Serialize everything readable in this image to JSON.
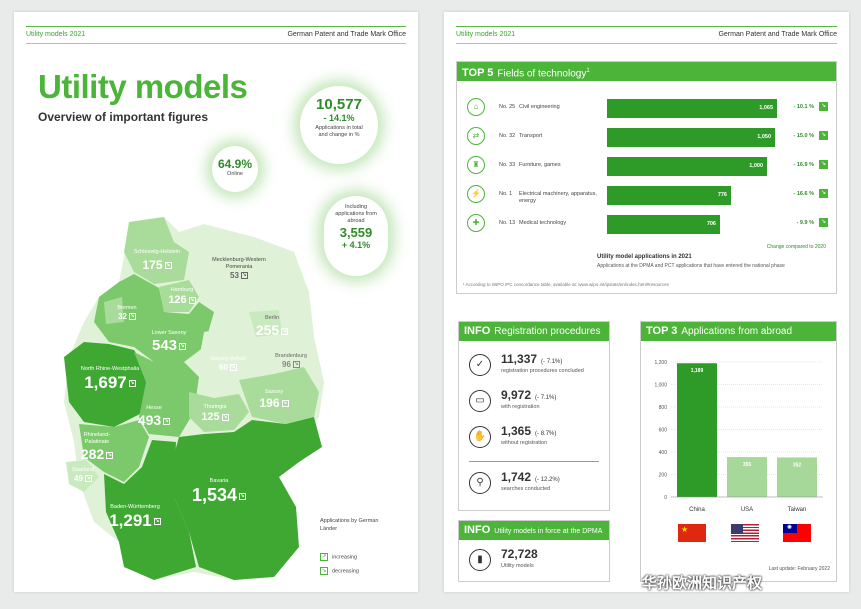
{
  "left": {
    "header_left": "Utility models 2021",
    "header_right": "German Patent and Trade Mark Office",
    "title": "Utility models",
    "subtitle": "Overview of important figures",
    "total": {
      "value": "10,577",
      "change": "- 14.1%",
      "label": "Applications in total and change in %"
    },
    "online": {
      "value": "64.9%",
      "label": "Online"
    },
    "abroad": {
      "label": "Including applications from abroad",
      "value": "3,559",
      "change": "+ 4.1%"
    },
    "regions": [
      {
        "name": "Schleswig-Holstein",
        "value": "175"
      },
      {
        "name": "Mecklenburg-Western Pomerania",
        "value": "53"
      },
      {
        "name": "Hamburg",
        "value": "126"
      },
      {
        "name": "Bremen",
        "value": "32"
      },
      {
        "name": "Lower Saxony",
        "value": "543"
      },
      {
        "name": "Berlin",
        "value": "255"
      },
      {
        "name": "Brandenburg",
        "value": "96"
      },
      {
        "name": "Saxony-Anhalt",
        "value": "60"
      },
      {
        "name": "North Rhine-Westphalia",
        "value": "1,697"
      },
      {
        "name": "Hesse",
        "value": "493"
      },
      {
        "name": "Thuringia",
        "value": "125"
      },
      {
        "name": "Saxony",
        "value": "196"
      },
      {
        "name": "Rhineland-Palatinate",
        "value": "282"
      },
      {
        "name": "Saarland",
        "value": "49"
      },
      {
        "name": "Bavaria",
        "value": "1,534"
      },
      {
        "name": "Baden-Württemberg",
        "value": "1,291"
      }
    ],
    "legend_title": "Applications by German Länder",
    "legend_increasing": "increasing",
    "legend_decreasing": "decreasing"
  },
  "right": {
    "header_left": "Utility models 2021",
    "header_right": "German Patent and Trade Mark Office",
    "top5": {
      "title_bold": "TOP 5",
      "title": "Fields of technology",
      "rows": [
        {
          "no": "No. 25",
          "name": "Civil engineering",
          "value": "1,065",
          "change": "- 10.1 %"
        },
        {
          "no": "No. 32",
          "name": "Transport",
          "value": "1,050",
          "change": "- 15.0 %"
        },
        {
          "no": "No. 33",
          "name": "Furniture, games",
          "value": "1,000",
          "change": "- 16.9 %"
        },
        {
          "no": "No. 1",
          "name": "Electrical machinery, apparatus, energy",
          "value": "776",
          "change": "- 16.6 %"
        },
        {
          "no": "No. 13",
          "name": "Medical technology",
          "value": "706",
          "change": "- 9.9 %"
        }
      ],
      "change_note": "Change compared to 2020",
      "caption": "Utility model applications in 2021",
      "caption2": "Applications at the DPMA and PCT applications that have entered the national phase",
      "footnote": "¹ According to WIPO IPC concordance table, available at: www.wipo.int/ipstats/en/index.html#resources"
    },
    "info_reg": {
      "title_bold": "INFO",
      "title": "Registration procedures",
      "rows": [
        {
          "value": "11,337",
          "change": "(- 7.1%)",
          "label": "registration procedures concluded"
        },
        {
          "value": "9,972",
          "change": "(- 7.1%)",
          "label": "with registration"
        },
        {
          "value": "1,365",
          "change": "(- 8.7%)",
          "label": "without registration"
        },
        {
          "value": "1,742",
          "change": "(- 12.2%)",
          "label": "searches conducted"
        }
      ]
    },
    "info_force": {
      "title_bold": "INFO",
      "title": "Utility models in force at the DPMA",
      "value": "72,728",
      "label": "Utility models"
    },
    "top3": {
      "title_bold": "TOP 3",
      "title": "Applications from abroad",
      "last_update": "Last update: February 2022"
    }
  },
  "chart_data": {
    "type": "bar",
    "categories": [
      "China",
      "USA",
      "Taiwan"
    ],
    "values": [
      1189,
      355,
      352
    ],
    "ylim": [
      0,
      1200
    ],
    "yticks": [
      "0",
      "200",
      "400",
      "600",
      "800",
      "1,000",
      "1,200"
    ],
    "value_labels": [
      "1,189",
      "355",
      "352"
    ],
    "colors": [
      "#2e9a27",
      "#a6d89a",
      "#a6d89a"
    ]
  },
  "watermark": "华孙欧洲知识产权"
}
